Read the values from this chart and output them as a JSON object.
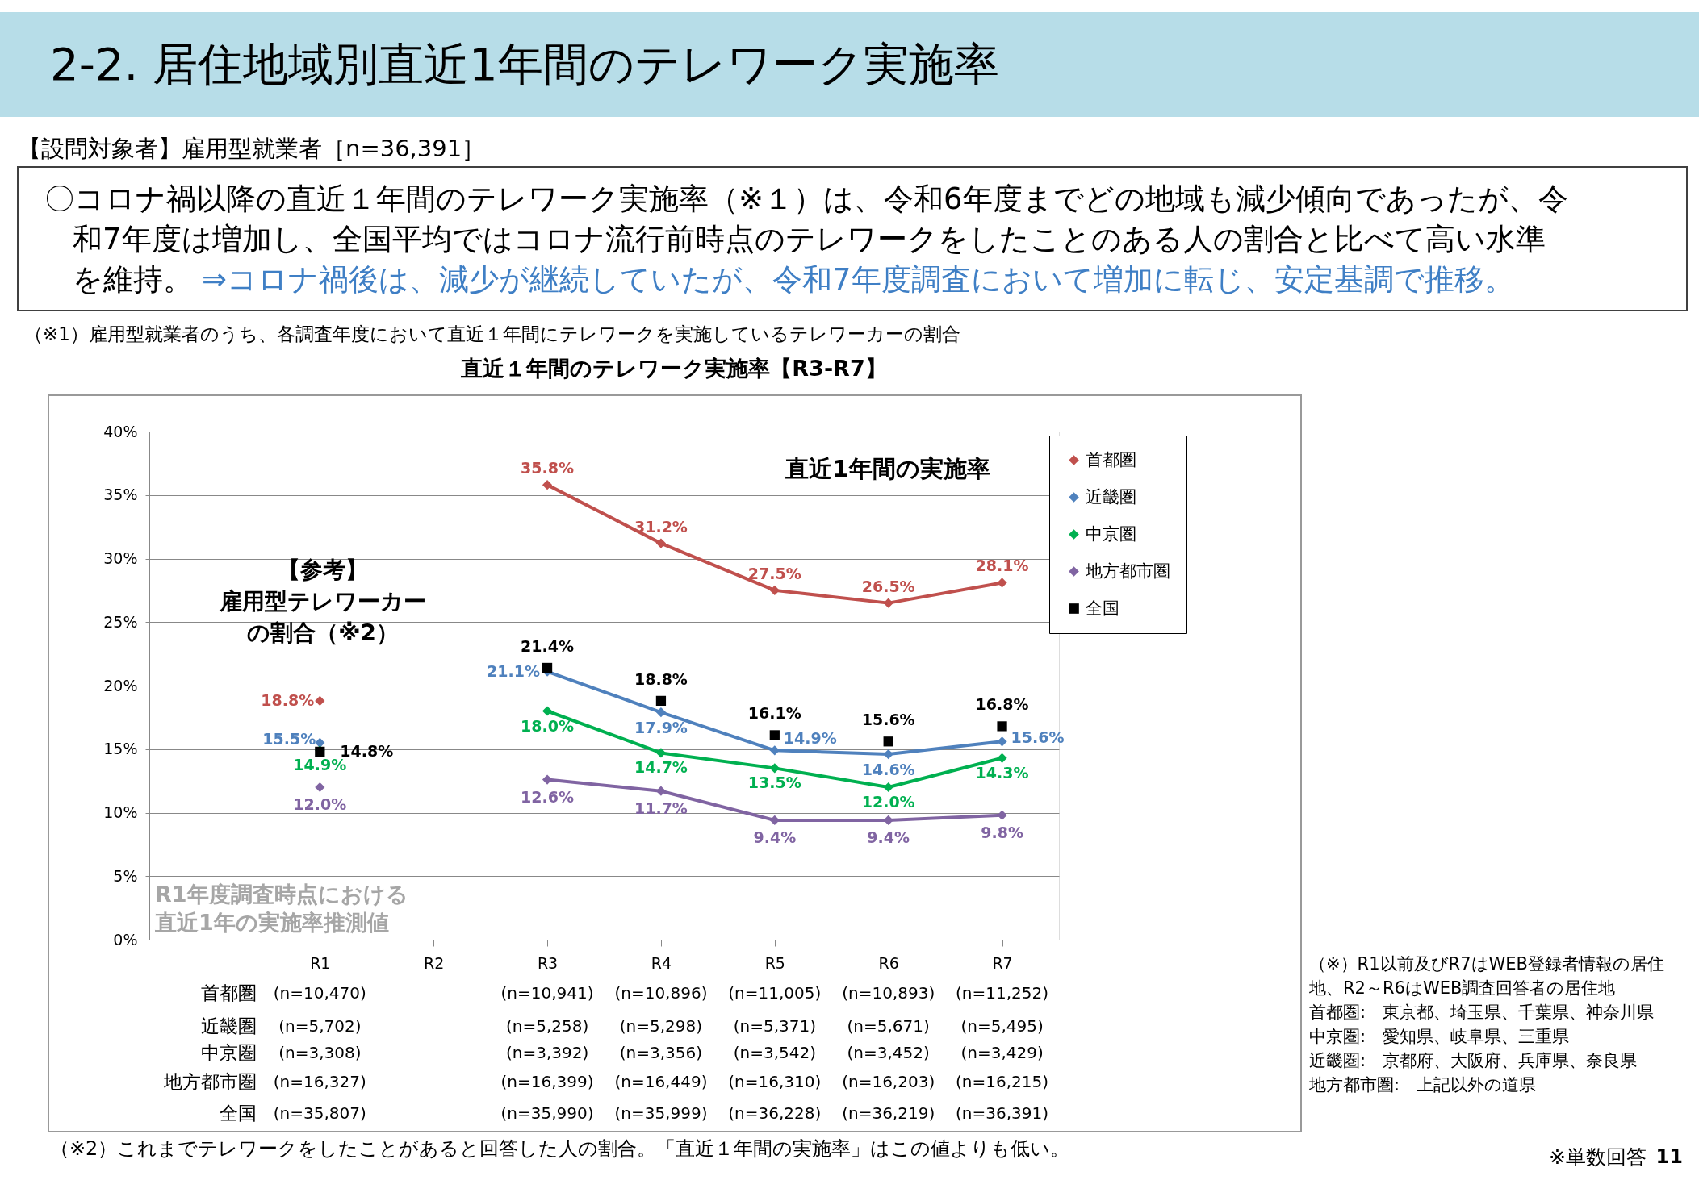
{
  "chart_data": {
    "type": "line",
    "title": "2-2. 居住地域別直近1年間のテレワーク実施率",
    "categories": [
      "R1",
      "R2",
      "R3",
      "R4",
      "R5",
      "R6",
      "R7"
    ],
    "series": [
      {
        "name": "首都圏",
        "color": "#c0504d",
        "values": [
          18.8,
          null,
          35.8,
          31.2,
          27.5,
          26.5,
          28.1
        ],
        "value_labels": [
          "18.8%",
          null,
          "35.8%",
          "31.2%",
          "27.5%",
          "26.5%",
          "28.1%"
        ]
      },
      {
        "name": "近畿圏",
        "color": "#4f81bd",
        "values": [
          15.5,
          null,
          21.1,
          17.9,
          14.9,
          14.6,
          15.6
        ],
        "value_labels": [
          "15.5%",
          null,
          "21.1%",
          "17.9%",
          "14.9%",
          "14.6%",
          "15.6%"
        ]
      },
      {
        "name": "中京圏",
        "color": "#00b050",
        "values": [
          14.9,
          null,
          18.0,
          14.7,
          13.5,
          12.0,
          14.3
        ],
        "value_labels": [
          "14.9%",
          null,
          "18.0%",
          "14.7%",
          "13.5%",
          "12.0%",
          "14.3%"
        ]
      },
      {
        "name": "地方都市圏",
        "color": "#8064a2",
        "values": [
          12.0,
          null,
          12.6,
          11.7,
          9.4,
          9.4,
          9.8
        ],
        "value_labels": [
          "12.0%",
          null,
          "12.6%",
          "11.7%",
          "9.4%",
          "9.4%",
          "9.8%"
        ]
      },
      {
        "name": "全国",
        "type": "scatter",
        "marker": "square",
        "color": "#000000",
        "values": [
          14.8,
          null,
          21.4,
          18.8,
          16.1,
          15.6,
          16.8
        ],
        "value_labels": [
          "14.8%",
          null,
          "21.4%",
          "18.8%",
          "16.1%",
          "15.6%",
          "16.8%"
        ]
      }
    ],
    "ylim": [
      0,
      40
    ],
    "yticks": [
      {
        "value": 0,
        "label": "0%"
      },
      {
        "value": 5,
        "label": "5%"
      },
      {
        "value": 10,
        "label": "10%"
      },
      {
        "value": 15,
        "label": "15%"
      },
      {
        "value": 20,
        "label": "20%"
      },
      {
        "value": 25,
        "label": "25%"
      },
      {
        "value": 30,
        "label": "30%"
      },
      {
        "value": 35,
        "label": "35%"
      },
      {
        "value": 40,
        "label": "40%"
      }
    ],
    "grid": "y",
    "legend": "top right",
    "marker": "diamond",
    "annotations": [
      "【設問対象者】雇用型就業者［n=36,391］",
      "〇コロナ禍以降の直近１年間のテレワーク実施率（※１）は、令和6年度までどの地域も減少傾向であったが、令",
      "和7年度は増加し、全国平均ではコロナ流行前時点のテレワークをしたことのある人の割合と比べて高い水準",
      "を維持。",
      "⇒コロナ禍後は、減少が継続していたが、令和7年度調査において増加に転じ、安定基調で推移。",
      "（※1）雇用型就業者のうち、各調査年度において直近１年間にテレワークを実施しているテレワーカーの割合",
      "直近１年間のテレワーク実施率【R3-R7】",
      "直近1年間の実施率",
      "【参考】",
      "雇用型テレワーカー",
      "の割合（※2）",
      "R1年度調査時点における",
      "直近1年の実施率推測値",
      "（※）R1以前及びR7はWEB登録者情報の居住",
      "地、R2～R6はWEB調査回答者の居住地",
      "首都圏:　東京都、埼玉県、千葉県、神奈川県",
      "中京圏:　愛知県、岐阜県、三重県",
      "近畿圏:　京都府、大阪府、兵庫県、奈良県",
      "地方都市圏:　上記以外の道県",
      "※単数回答",
      "11",
      "（※2）これまでテレワークをしたことがあると回答した人の割合。「直近１年間の実施率」はこの値よりも低い。",
      "首都圏",
      "(n=10,470)",
      "(n=10,941)",
      "(n=10,896)",
      "(n=11,005)",
      "(n=10,893)",
      "(n=11,252)",
      "近畿圏",
      "(n=5,702)",
      "(n=5,258)",
      "(n=5,298)",
      "(n=5,371)",
      "(n=5,671)",
      "(n=5,495)",
      "中京圏",
      "(n=3,308)",
      "(n=3,392)",
      "(n=3,356)",
      "(n=3,542)",
      "(n=3,452)",
      "(n=3,429)",
      "地方都市圏",
      "(n=16,327)",
      "(n=16,399)",
      "(n=16,449)",
      "(n=16,310)",
      "(n=16,203)",
      "(n=16,215)",
      "全国",
      "(n=35,807)",
      "(n=35,990)",
      "(n=35,999)",
      "(n=36,228)",
      "(n=36,219)",
      "(n=36,391)"
    ]
  }
}
